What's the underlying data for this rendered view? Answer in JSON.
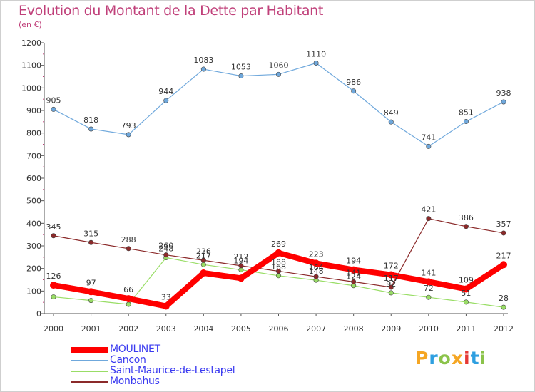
{
  "chart_data": {
    "type": "line",
    "title": "Evolution du Montant de la Dette par Habitant",
    "subtitle": "(en €)",
    "x": [
      "2000",
      "2001",
      "2002",
      "2003",
      "2004",
      "2005",
      "2006",
      "2007",
      "2008",
      "2009",
      "2010",
      "2011",
      "2012"
    ],
    "ylim": [
      0,
      1200
    ],
    "yticks": [
      0,
      100,
      200,
      300,
      400,
      500,
      600,
      700,
      800,
      900,
      1000,
      1100,
      1200
    ],
    "grid": false,
    "legend_position": "bottom-left",
    "series": [
      {
        "name": "MOULINET",
        "color": "#ff0000",
        "values": [
          126,
          97,
          66,
          33,
          180,
          157,
          269,
          223,
          194,
          172,
          141,
          109,
          217
        ],
        "labels": [
          "126",
          "97",
          "66",
          "33",
          "",
          "",
          "269",
          "223",
          "194",
          "172",
          "141",
          "109",
          "217"
        ]
      },
      {
        "name": "Cancon",
        "color": "#6fa8dc",
        "values": [
          905,
          818,
          793,
          944,
          1083,
          1053,
          1060,
          1110,
          986,
          849,
          741,
          851,
          938
        ],
        "labels": [
          "905",
          "818",
          "793",
          "944",
          "1083",
          "1053",
          "1060",
          "1110",
          "986",
          "849",
          "741",
          "851",
          "938"
        ]
      },
      {
        "name": "Saint-Maurice-de-Lestapel",
        "color": "#99dd66",
        "values": [
          74,
          58,
          41,
          248,
          217,
          194,
          168,
          148,
          124,
          92,
          72,
          51,
          28
        ],
        "labels": [
          "",
          "",
          "",
          "248",
          "217",
          "194",
          "168",
          "148",
          "124",
          "92",
          "72",
          "51",
          "28"
        ]
      },
      {
        "name": "Monbahus",
        "color": "#8b2a2a",
        "values": [
          345,
          315,
          288,
          260,
          236,
          212,
          188,
          164,
          141,
          117,
          421,
          386,
          357
        ],
        "labels": [
          "345",
          "315",
          "288",
          "260",
          "236",
          "212",
          "188",
          "164",
          "141",
          "117",
          "421",
          "386",
          "357"
        ]
      }
    ]
  },
  "logo": {
    "letters": [
      "P",
      "r",
      "o",
      "x",
      "i",
      "t",
      "i"
    ],
    "colors": [
      "#f5a623",
      "#2e9fe0",
      "#8bc34a",
      "#f5a623",
      "#e53935",
      "#2e9fe0",
      "#8bc34a"
    ]
  }
}
